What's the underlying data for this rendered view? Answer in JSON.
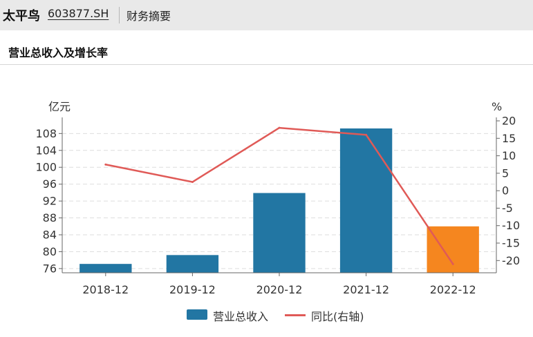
{
  "header": {
    "stock_name": "太平鸟",
    "stock_code": "603877.SH",
    "tab_label": "财务摘要"
  },
  "panel": {
    "title": "营业总收入及增长率"
  },
  "chart_data": {
    "type": "bar",
    "categories": [
      "2018-12",
      "2019-12",
      "2020-12",
      "2021-12",
      "2022-12"
    ],
    "series": [
      {
        "name": "营业总收入",
        "type": "bar",
        "axis": "left",
        "values": [
          77.1,
          79.2,
          93.9,
          109.2,
          86.0
        ],
        "colors": [
          "#2276a3",
          "#2276a3",
          "#2276a3",
          "#2276a3",
          "#f5861f"
        ]
      },
      {
        "name": "同比(右轴)",
        "type": "line",
        "axis": "right",
        "values": [
          7.5,
          2.5,
          18.0,
          16.0,
          -21.0
        ],
        "color": "#e05a57"
      }
    ],
    "y_left": {
      "unit": "亿元",
      "ticks": [
        76,
        80,
        84,
        88,
        92,
        96,
        100,
        104,
        108
      ],
      "range": [
        75,
        111
      ]
    },
    "y_right": {
      "unit": "%",
      "ticks": [
        -20,
        -15,
        -10,
        -5,
        0,
        5,
        10,
        15,
        20
      ],
      "range": [
        -23.5,
        20
      ]
    },
    "grid": true,
    "legend_position": "bottom"
  }
}
